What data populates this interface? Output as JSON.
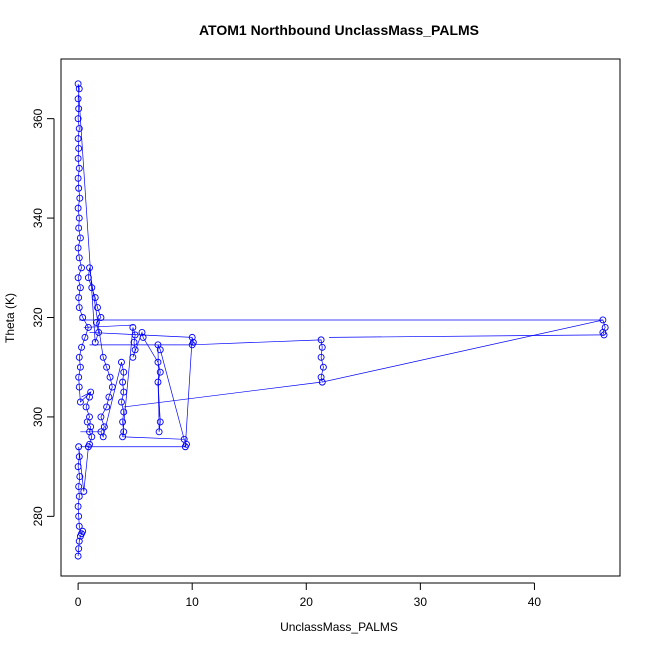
{
  "chart_data": {
    "type": "scatter",
    "title": "ATOM1 Northbound UnclassMass_PALMS",
    "xlabel": "UnclassMass_PALMS",
    "ylabel": "Theta (K)",
    "xlim": [
      -1.5,
      47.5
    ],
    "ylim": [
      268,
      372
    ],
    "xticks": [
      0,
      10,
      20,
      30,
      40
    ],
    "yticks": [
      280,
      300,
      320,
      340,
      360
    ],
    "point_style": "open-circle",
    "connected_by_lines": true,
    "color": "#0000ff",
    "series": [
      {
        "values": [
          [
            0.0,
            272.0
          ],
          [
            0.05,
            273.5
          ],
          [
            0.1,
            275.0
          ],
          [
            0.2,
            276.0
          ],
          [
            0.4,
            277.0
          ],
          [
            0.3,
            276.5
          ],
          [
            0.1,
            278.0
          ],
          [
            0.05,
            280.0
          ],
          [
            0.0,
            282.0
          ],
          [
            0.1,
            284.0
          ],
          [
            0.05,
            286.0
          ],
          [
            0.15,
            288.0
          ],
          [
            0.0,
            290.0
          ],
          [
            0.1,
            292.0
          ],
          [
            0.05,
            294.0
          ],
          [
            0.5,
            285.0
          ],
          [
            0.9,
            294.0
          ],
          [
            1.0,
            294.5
          ],
          [
            1.2,
            296.0
          ],
          [
            1.0,
            297.0
          ],
          [
            1.1,
            298.0
          ],
          [
            0.8,
            299.0
          ],
          [
            1.0,
            300.0
          ],
          [
            0.7,
            302.0
          ],
          [
            1.0,
            304.0
          ],
          [
            1.1,
            305.0
          ],
          [
            0.2,
            303.0
          ],
          [
            0.1,
            306.0
          ],
          [
            0.05,
            308.0
          ],
          [
            0.2,
            310.0
          ],
          [
            0.1,
            312.0
          ],
          [
            0.3,
            314.0
          ],
          [
            0.6,
            316.0
          ],
          [
            0.9,
            318.0
          ],
          [
            0.4,
            320.0
          ],
          [
            0.1,
            322.0
          ],
          [
            0.05,
            324.0
          ],
          [
            0.2,
            326.0
          ],
          [
            0.0,
            328.0
          ],
          [
            0.3,
            330.0
          ],
          [
            0.1,
            332.0
          ],
          [
            0.0,
            334.0
          ],
          [
            0.2,
            336.0
          ],
          [
            0.05,
            338.0
          ],
          [
            0.1,
            340.0
          ],
          [
            0.0,
            342.0
          ],
          [
            0.15,
            344.0
          ],
          [
            0.05,
            346.0
          ],
          [
            0.0,
            348.0
          ],
          [
            0.1,
            350.0
          ],
          [
            0.0,
            352.0
          ],
          [
            0.05,
            354.0
          ],
          [
            0.0,
            356.0
          ],
          [
            0.1,
            358.0
          ],
          [
            0.0,
            360.0
          ],
          [
            0.05,
            362.0
          ],
          [
            0.0,
            364.0
          ],
          [
            0.1,
            366.0
          ],
          [
            0.0,
            367.0
          ],
          [
            1.5,
            315.0
          ],
          [
            1.8,
            317.0
          ],
          [
            1.6,
            319.0
          ],
          [
            2.0,
            320.0
          ],
          [
            1.7,
            322.0
          ],
          [
            1.5,
            324.0
          ],
          [
            1.2,
            326.0
          ],
          [
            0.9,
            328.0
          ],
          [
            1.0,
            330.0
          ],
          [
            2.2,
            312.0
          ],
          [
            2.5,
            310.0
          ],
          [
            2.8,
            308.0
          ],
          [
            3.0,
            306.0
          ],
          [
            2.7,
            304.0
          ],
          [
            2.5,
            302.0
          ],
          [
            2.0,
            300.0
          ],
          [
            2.3,
            298.0
          ],
          [
            2.0,
            297.0
          ],
          [
            2.2,
            296.0
          ],
          [
            3.8,
            311.0
          ],
          [
            4.0,
            309.0
          ],
          [
            3.9,
            307.0
          ],
          [
            4.0,
            305.0
          ],
          [
            3.8,
            303.0
          ],
          [
            4.0,
            301.0
          ],
          [
            3.9,
            299.0
          ],
          [
            4.0,
            297.0
          ],
          [
            3.9,
            296.0
          ],
          [
            4.8,
            318.0
          ],
          [
            5.0,
            316.5
          ],
          [
            4.9,
            315.0
          ],
          [
            5.0,
            313.5
          ],
          [
            4.8,
            312.0
          ],
          [
            5.6,
            317.0
          ],
          [
            5.7,
            316.0
          ],
          [
            7.0,
            311.0
          ],
          [
            7.2,
            309.0
          ],
          [
            7.0,
            307.0
          ],
          [
            7.2,
            299.0
          ],
          [
            7.1,
            297.0
          ],
          [
            7.0,
            314.5
          ],
          [
            7.2,
            313.5
          ],
          [
            9.3,
            295.5
          ],
          [
            9.5,
            294.5
          ],
          [
            9.4,
            294.0
          ],
          [
            10.0,
            316.0
          ],
          [
            10.1,
            315.0
          ],
          [
            10.0,
            314.5
          ],
          [
            21.3,
            315.5
          ],
          [
            21.4,
            314.0
          ],
          [
            21.3,
            312.0
          ],
          [
            21.5,
            310.0
          ],
          [
            21.3,
            308.0
          ],
          [
            21.4,
            307.0
          ],
          [
            46.0,
            319.5
          ],
          [
            46.2,
            318.0
          ],
          [
            46.0,
            317.0
          ],
          [
            46.1,
            316.5
          ]
        ]
      }
    ],
    "connecting_lines": [
      [
        [
          0.1,
          319.5
        ],
        [
          46.0,
          319.5
        ]
      ],
      [
        [
          22.0,
          316.0
        ],
        [
          46.0,
          316.5
        ]
      ],
      [
        [
          4.0,
          302.0
        ],
        [
          21.3,
          307.0
        ]
      ],
      [
        [
          0.2,
          294.0
        ],
        [
          9.4,
          294.0
        ]
      ],
      [
        [
          3.9,
          296.0
        ],
        [
          9.3,
          295.5
        ]
      ],
      [
        [
          1.0,
          317.0
        ],
        [
          10.0,
          316.0
        ]
      ],
      [
        [
          1.0,
          314.5
        ],
        [
          10.0,
          314.5
        ]
      ],
      [
        [
          0.5,
          318.0
        ],
        [
          5.0,
          318.5
        ]
      ],
      [
        [
          0.3,
          304.0
        ],
        [
          1.1,
          305.0
        ]
      ],
      [
        [
          0.2,
          297.0
        ],
        [
          2.0,
          297.0
        ]
      ],
      [
        [
          7.0,
          307.0
        ],
        [
          7.1,
          300.0
        ]
      ]
    ]
  }
}
